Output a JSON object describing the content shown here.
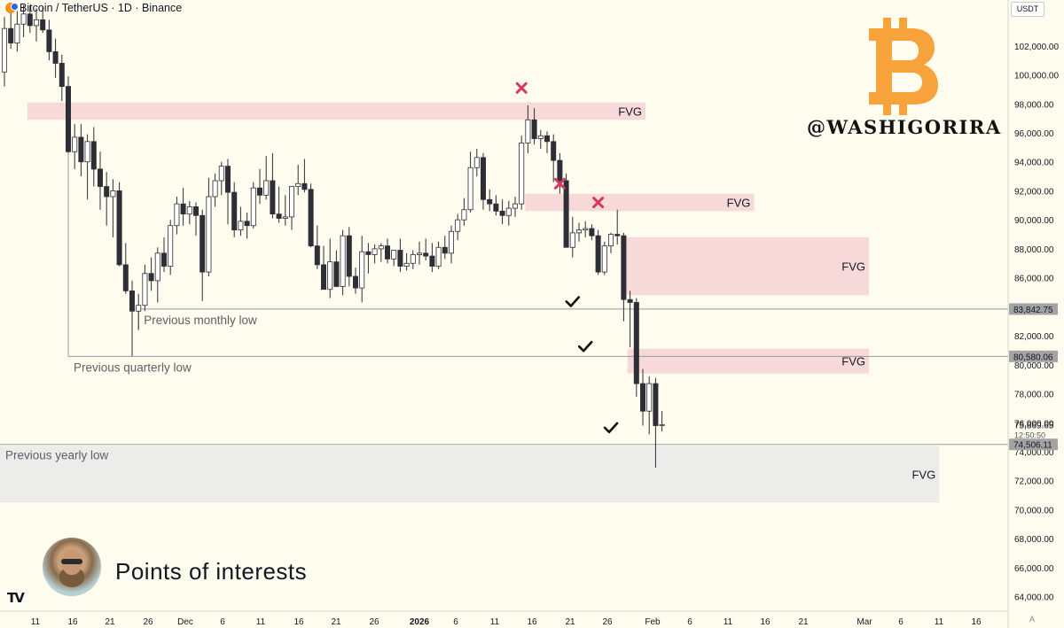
{
  "header": {
    "title": "Bitcoin / TetherUS · 1D · Binance",
    "currency": "USDT"
  },
  "branding": {
    "handle": "@WASHIGORIRA",
    "logo_icon": "bitcoin-logo-icon",
    "logo_color": "#f7a23a"
  },
  "caption": "Points of interests",
  "corner_label": "A",
  "colors": {
    "background": "#fdfcee",
    "candle_up_fill": "#ffffff",
    "candle_down_fill": "#2e2e36",
    "candle_border": "#2e2e36",
    "fvg_fill": "#f7d9d9",
    "fvg_bottom_fill": "#ececea",
    "cross": "#d4395e",
    "level_line": "#9a9a9a"
  },
  "chart_data": {
    "type": "candlestick",
    "x_axis": {
      "ticks": [
        "11",
        "16",
        "21",
        "26",
        "Dec",
        "6",
        "11",
        "16",
        "21",
        "26",
        "2026",
        "6",
        "11",
        "16",
        "21",
        "26",
        "Feb",
        "6",
        "11",
        "16",
        "21",
        "Mar",
        "6",
        "11",
        "16"
      ]
    },
    "y_axis": {
      "range": [
        63000,
        104800
      ],
      "ticks": [
        "64,000.00",
        "66,000.00",
        "68,000.00",
        "70,000.00",
        "72,000.00",
        "74,000.00",
        "76,000.00",
        "78,000.00",
        "80,000.00",
        "82,000.00",
        "84,000.00",
        "86,000.00",
        "88,000.00",
        "90,000.00",
        "92,000.00",
        "94,000.00",
        "96,000.00",
        "98,000.00",
        "100,000.00",
        "102,000.00"
      ],
      "tick_values": [
        64000,
        66000,
        68000,
        70000,
        72000,
        74000,
        76000,
        78000,
        80000,
        82000,
        84000,
        86000,
        88000,
        90000,
        92000,
        94000,
        96000,
        98000,
        100000,
        102000
      ]
    },
    "candles": [
      {
        "o": 100200,
        "h": 104000,
        "l": 99200,
        "c": 103200
      },
      {
        "o": 103200,
        "h": 104600,
        "l": 101800,
        "c": 102200
      },
      {
        "o": 102200,
        "h": 104400,
        "l": 101600,
        "c": 103500
      },
      {
        "o": 103500,
        "h": 104800,
        "l": 102600,
        "c": 104200
      },
      {
        "o": 104200,
        "h": 104800,
        "l": 102900,
        "c": 103400
      },
      {
        "o": 103400,
        "h": 104600,
        "l": 102300,
        "c": 103800
      },
      {
        "o": 103800,
        "h": 104700,
        "l": 102900,
        "c": 103100
      },
      {
        "o": 103100,
        "h": 103800,
        "l": 101000,
        "c": 101600
      },
      {
        "o": 101600,
        "h": 102500,
        "l": 99800,
        "c": 100800
      },
      {
        "o": 100800,
        "h": 101400,
        "l": 98200,
        "c": 99200
      },
      {
        "o": 99200,
        "h": 99900,
        "l": 94600,
        "c": 94700
      },
      {
        "o": 94700,
        "h": 96600,
        "l": 93500,
        "c": 95700
      },
      {
        "o": 95700,
        "h": 96600,
        "l": 93000,
        "c": 94000
      },
      {
        "o": 94000,
        "h": 95900,
        "l": 91400,
        "c": 95400
      },
      {
        "o": 95400,
        "h": 96400,
        "l": 92300,
        "c": 93500
      },
      {
        "o": 93500,
        "h": 94700,
        "l": 90700,
        "c": 92300
      },
      {
        "o": 92300,
        "h": 93300,
        "l": 89600,
        "c": 91600
      },
      {
        "o": 91600,
        "h": 92800,
        "l": 88800,
        "c": 92000
      },
      {
        "o": 92000,
        "h": 92600,
        "l": 86800,
        "c": 86900
      },
      {
        "o": 86900,
        "h": 88400,
        "l": 84900,
        "c": 85100
      },
      {
        "o": 85100,
        "h": 85800,
        "l": 80600,
        "c": 83700
      },
      {
        "o": 83700,
        "h": 84900,
        "l": 82400,
        "c": 84100
      },
      {
        "o": 84100,
        "h": 86900,
        "l": 83700,
        "c": 86300
      },
      {
        "o": 86300,
        "h": 87400,
        "l": 85100,
        "c": 85800
      },
      {
        "o": 85800,
        "h": 88100,
        "l": 84300,
        "c": 87700
      },
      {
        "o": 87700,
        "h": 88800,
        "l": 86400,
        "c": 86800
      },
      {
        "o": 86800,
        "h": 90000,
        "l": 86200,
        "c": 89600
      },
      {
        "o": 89600,
        "h": 91600,
        "l": 89000,
        "c": 91100
      },
      {
        "o": 91100,
        "h": 92200,
        "l": 89600,
        "c": 90400
      },
      {
        "o": 90400,
        "h": 91300,
        "l": 89700,
        "c": 90900
      },
      {
        "o": 90900,
        "h": 91200,
        "l": 88900,
        "c": 90300
      },
      {
        "o": 90300,
        "h": 90700,
        "l": 84400,
        "c": 86400
      },
      {
        "o": 86400,
        "h": 92900,
        "l": 86100,
        "c": 91600
      },
      {
        "o": 91600,
        "h": 93200,
        "l": 90900,
        "c": 92700
      },
      {
        "o": 92700,
        "h": 94000,
        "l": 91700,
        "c": 93700
      },
      {
        "o": 93700,
        "h": 94200,
        "l": 89700,
        "c": 91900
      },
      {
        "o": 91900,
        "h": 92600,
        "l": 88800,
        "c": 89300
      },
      {
        "o": 89300,
        "h": 90900,
        "l": 88900,
        "c": 89900
      },
      {
        "o": 89900,
        "h": 90500,
        "l": 88700,
        "c": 89600
      },
      {
        "o": 89600,
        "h": 92600,
        "l": 89400,
        "c": 92200
      },
      {
        "o": 92200,
        "h": 93500,
        "l": 91100,
        "c": 91700
      },
      {
        "o": 91700,
        "h": 94400,
        "l": 91400,
        "c": 92700
      },
      {
        "o": 92700,
        "h": 94600,
        "l": 90100,
        "c": 90400
      },
      {
        "o": 90400,
        "h": 92300,
        "l": 89800,
        "c": 90100
      },
      {
        "o": 90100,
        "h": 91700,
        "l": 89600,
        "c": 90200
      },
      {
        "o": 90200,
        "h": 91900,
        "l": 89300,
        "c": 92300
      },
      {
        "o": 92300,
        "h": 93800,
        "l": 91700,
        "c": 92500
      },
      {
        "o": 92500,
        "h": 94200,
        "l": 91900,
        "c": 92100
      },
      {
        "o": 92100,
        "h": 92500,
        "l": 88100,
        "c": 88200
      },
      {
        "o": 88200,
        "h": 89600,
        "l": 86600,
        "c": 86900
      },
      {
        "o": 86900,
        "h": 88200,
        "l": 85300,
        "c": 85200
      },
      {
        "o": 85200,
        "h": 88700,
        "l": 84600,
        "c": 87100
      },
      {
        "o": 87100,
        "h": 87900,
        "l": 85700,
        "c": 85400
      },
      {
        "o": 85400,
        "h": 89300,
        "l": 84800,
        "c": 88900
      },
      {
        "o": 88900,
        "h": 89500,
        "l": 85400,
        "c": 86100
      },
      {
        "o": 86100,
        "h": 86700,
        "l": 84900,
        "c": 85300
      },
      {
        "o": 85300,
        "h": 88900,
        "l": 84300,
        "c": 87800
      },
      {
        "o": 87800,
        "h": 88400,
        "l": 86300,
        "c": 87600
      },
      {
        "o": 87600,
        "h": 88300,
        "l": 87000,
        "c": 88000
      },
      {
        "o": 88000,
        "h": 88400,
        "l": 87100,
        "c": 88200
      },
      {
        "o": 88200,
        "h": 88700,
        "l": 87000,
        "c": 87300
      },
      {
        "o": 87300,
        "h": 87900,
        "l": 86800,
        "c": 87900
      },
      {
        "o": 87900,
        "h": 88700,
        "l": 86400,
        "c": 86800
      },
      {
        "o": 86800,
        "h": 87700,
        "l": 86500,
        "c": 87000
      },
      {
        "o": 87000,
        "h": 87900,
        "l": 86600,
        "c": 87600
      },
      {
        "o": 87600,
        "h": 88500,
        "l": 86900,
        "c": 87700
      },
      {
        "o": 87700,
        "h": 88700,
        "l": 87200,
        "c": 87500
      },
      {
        "o": 87500,
        "h": 88400,
        "l": 86400,
        "c": 86800
      },
      {
        "o": 86800,
        "h": 88500,
        "l": 86600,
        "c": 88100
      },
      {
        "o": 88100,
        "h": 88900,
        "l": 87300,
        "c": 87700
      },
      {
        "o": 87700,
        "h": 89600,
        "l": 87000,
        "c": 89200
      },
      {
        "o": 89200,
        "h": 90400,
        "l": 88600,
        "c": 90000
      },
      {
        "o": 90000,
        "h": 91500,
        "l": 89600,
        "c": 90700
      },
      {
        "o": 90700,
        "h": 94700,
        "l": 90500,
        "c": 93600
      },
      {
        "o": 93600,
        "h": 94900,
        "l": 93000,
        "c": 94300
      },
      {
        "o": 94300,
        "h": 94600,
        "l": 90700,
        "c": 91400
      },
      {
        "o": 91400,
        "h": 92100,
        "l": 90600,
        "c": 91100
      },
      {
        "o": 91100,
        "h": 91700,
        "l": 90300,
        "c": 90600
      },
      {
        "o": 90600,
        "h": 91400,
        "l": 89700,
        "c": 90300
      },
      {
        "o": 90300,
        "h": 91300,
        "l": 89600,
        "c": 90800
      },
      {
        "o": 90800,
        "h": 91600,
        "l": 90200,
        "c": 91100
      },
      {
        "o": 91100,
        "h": 95800,
        "l": 90700,
        "c": 95300
      },
      {
        "o": 95300,
        "h": 97900,
        "l": 94600,
        "c": 96900
      },
      {
        "o": 96900,
        "h": 97700,
        "l": 95200,
        "c": 95600
      },
      {
        "o": 95600,
        "h": 96200,
        "l": 94900,
        "c": 95800
      },
      {
        "o": 95800,
        "h": 96100,
        "l": 94600,
        "c": 95400
      },
      {
        "o": 95400,
        "h": 95900,
        "l": 92600,
        "c": 94100
      },
      {
        "o": 94100,
        "h": 94600,
        "l": 91800,
        "c": 92700
      },
      {
        "o": 92700,
        "h": 93200,
        "l": 88200,
        "c": 88100
      },
      {
        "o": 88100,
        "h": 90200,
        "l": 87400,
        "c": 89100
      },
      {
        "o": 89100,
        "h": 89800,
        "l": 88500,
        "c": 89300
      },
      {
        "o": 89300,
        "h": 89900,
        "l": 88800,
        "c": 89400
      },
      {
        "o": 89400,
        "h": 89700,
        "l": 88600,
        "c": 88900
      },
      {
        "o": 88900,
        "h": 89300,
        "l": 86200,
        "c": 86400
      },
      {
        "o": 86400,
        "h": 88500,
        "l": 86200,
        "c": 88200
      },
      {
        "o": 88200,
        "h": 89100,
        "l": 87700,
        "c": 89000
      },
      {
        "o": 89000,
        "h": 90700,
        "l": 88300,
        "c": 88900
      },
      {
        "o": 88900,
        "h": 89100,
        "l": 83000,
        "c": 84500
      },
      {
        "o": 84500,
        "h": 85100,
        "l": 81200,
        "c": 84300
      },
      {
        "o": 84300,
        "h": 84600,
        "l": 77800,
        "c": 78700
      },
      {
        "o": 78700,
        "h": 79700,
        "l": 75800,
        "c": 76800
      },
      {
        "o": 76800,
        "h": 79200,
        "l": 75200,
        "c": 78700
      },
      {
        "o": 78700,
        "h": 79100,
        "l": 72900,
        "c": 75800
      },
      {
        "o": 75800,
        "h": 76800,
        "l": 75400,
        "c": 75870
      }
    ],
    "zones": [
      {
        "label": "FVG",
        "from_index": 4,
        "to_index": 100,
        "low": 96900,
        "high": 98100
      },
      {
        "label": "FVG",
        "from_index": 82,
        "to_index": 117,
        "low": 90600,
        "high": 91800
      },
      {
        "label": "FVG",
        "from_index": 97,
        "to_index": 135,
        "low": 84800,
        "high": 88800
      },
      {
        "label": "FVG",
        "from_index": 98,
        "to_index": 135,
        "low": 79400,
        "high": 81100
      },
      {
        "label": "FVG",
        "from_index": -6,
        "to_index": 146,
        "low": 70500,
        "high": 74400
      }
    ],
    "levels": [
      {
        "label": "Previous monthly low",
        "value": 83842.75,
        "from_index": 21,
        "price_label": "83,842.75"
      },
      {
        "label": "Previous quarterly low",
        "value": 80580.06,
        "from_index": 10,
        "price_label": "80,580.06"
      },
      {
        "label": "Previous yearly low",
        "value": 74506.11,
        "from_index": -6,
        "price_label": "74,506.11"
      }
    ],
    "last_price": {
      "value": 75869.65,
      "label": "75,869.65",
      "countdown": "12:50:50"
    },
    "markers": [
      {
        "type": "cross",
        "index": 81,
        "price": 99100
      },
      {
        "type": "cross",
        "index": 87,
        "price": 92500
      },
      {
        "type": "cross",
        "index": 93,
        "price": 91200
      },
      {
        "type": "check",
        "index": 89,
        "price": 84300
      },
      {
        "type": "check",
        "index": 91,
        "price": 81200
      },
      {
        "type": "check",
        "index": 95,
        "price": 75600
      }
    ]
  }
}
